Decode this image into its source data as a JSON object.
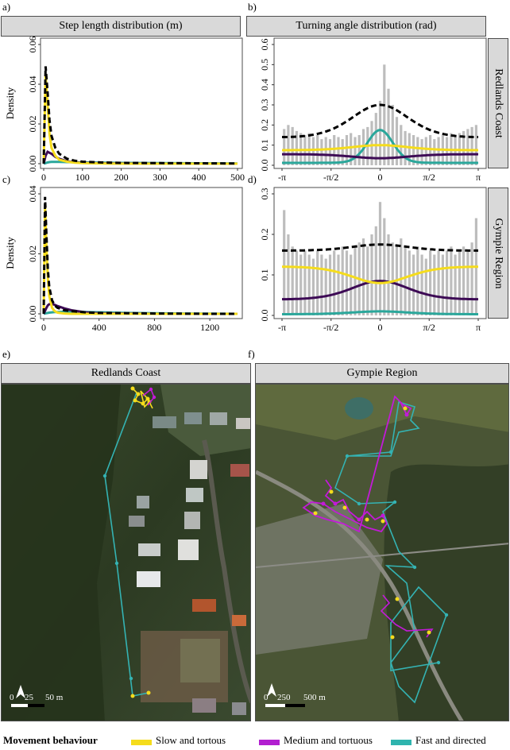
{
  "panels": {
    "a": {
      "letter": "a)",
      "title": "Step length distribution (m)"
    },
    "b": {
      "letter": "b)",
      "title": "Turning angle distribution (rad)"
    },
    "c": {
      "letter": "c)"
    },
    "d": {
      "letter": "d)"
    },
    "e": {
      "letter": "e)",
      "title": "Redlands Coast",
      "scalebar": [
        "0",
        "25",
        "50 m"
      ]
    },
    "f": {
      "letter": "f)",
      "title": "Gympie Region",
      "scalebar": [
        "0",
        "250",
        "500 m"
      ]
    }
  },
  "row_strips": [
    "Redlands Coast",
    "Gympie Region"
  ],
  "colors": {
    "slow": "#f5dc1c",
    "medium": "#3d0a55",
    "fast": "#2aa79b",
    "combined": "#000000",
    "hist": "#bdbdbd",
    "track_medium": "#c31ad8",
    "track_fast": "#34b3b3"
  },
  "legend": {
    "title": "Movement behaviour",
    "items": [
      {
        "label": "Slow and tortous",
        "color": "#f5dc1c"
      },
      {
        "label": "Medium and tortuous",
        "color": "#b21fd0"
      },
      {
        "label": "Fast and directed",
        "color": "#2fb4ae"
      }
    ]
  },
  "chart_data": [
    {
      "type": "line",
      "panel": "a",
      "title": "Step length distribution (m)",
      "ylabel": "Density",
      "row": "Redlands Coast",
      "xlim": [
        0,
        500
      ],
      "ylim": [
        0,
        0.06
      ],
      "xticks": [
        "0",
        "100",
        "200",
        "300",
        "400",
        "500"
      ],
      "yticks": [
        "0.00",
        "0.02",
        "0.04",
        "0.06"
      ],
      "x": [
        0,
        5,
        10,
        15,
        20,
        30,
        40,
        60,
        80,
        100,
        150,
        200,
        300,
        400,
        500
      ],
      "series": [
        {
          "key": "slow",
          "values": [
            0,
            0.045,
            0.03,
            0.015,
            0.008,
            0.004,
            0.002,
            0.001,
            0.0005,
            0.0003,
            0.0001,
            0,
            0,
            0,
            0
          ]
        },
        {
          "key": "medium",
          "values": [
            0,
            0.004,
            0.006,
            0.0055,
            0.005,
            0.0035,
            0.0025,
            0.0012,
            0.0007,
            0.0004,
            0.0002,
            0.0001,
            0,
            0,
            0
          ]
        },
        {
          "key": "fast",
          "values": [
            0,
            0.0003,
            0.0006,
            0.0008,
            0.0009,
            0.0009,
            0.0009,
            0.0008,
            0.0007,
            0.0006,
            0.0005,
            0.0004,
            0.0003,
            0.0002,
            0.0001
          ]
        },
        {
          "key": "combined",
          "values": [
            0,
            0.049,
            0.036,
            0.022,
            0.014,
            0.008,
            0.005,
            0.0025,
            0.0015,
            0.001,
            0.0006,
            0.0004,
            0.0003,
            0.0002,
            0.0001
          ]
        }
      ]
    },
    {
      "type": "bar",
      "panel": "b",
      "title": "Turning angle distribution (rad)",
      "row": "Redlands Coast",
      "xlim": [
        -3.1416,
        3.1416
      ],
      "ylim": [
        0,
        0.6
      ],
      "xticks": [
        "-π",
        "-π/2",
        "0",
        "π/2",
        "π"
      ],
      "yticks": [
        "0.0",
        "0.1",
        "0.2",
        "0.3",
        "0.4",
        "0.5",
        "0.6"
      ],
      "histogram": [
        0.18,
        0.2,
        0.19,
        0.17,
        0.16,
        0.15,
        0.16,
        0.14,
        0.15,
        0.13,
        0.14,
        0.13,
        0.15,
        0.14,
        0.13,
        0.15,
        0.16,
        0.14,
        0.15,
        0.18,
        0.19,
        0.22,
        0.26,
        0.32,
        0.5,
        0.38,
        0.3,
        0.24,
        0.2,
        0.17,
        0.16,
        0.15,
        0.14,
        0.13,
        0.14,
        0.15,
        0.13,
        0.14,
        0.15,
        0.14,
        0.16,
        0.15,
        0.16,
        0.17,
        0.18,
        0.19,
        0.2
      ],
      "curves": [
        {
          "key": "slow",
          "center": 0.1,
          "edge": 0.075
        },
        {
          "key": "medium",
          "center": 0.035,
          "edge": 0.055
        },
        {
          "key": "fast",
          "center": 0.175,
          "edge": 0.012,
          "peak": "sharp"
        },
        {
          "key": "combined",
          "center": 0.3,
          "edge": 0.14
        }
      ]
    },
    {
      "type": "line",
      "panel": "c",
      "ylabel": "Density",
      "row": "Gympie Region",
      "xlim": [
        0,
        1400
      ],
      "ylim": [
        0,
        0.04
      ],
      "xticks": [
        "0",
        "400",
        "800",
        "1200"
      ],
      "yticks": [
        "0.00",
        "0.02",
        "0.04"
      ],
      "x": [
        0,
        10,
        20,
        30,
        40,
        60,
        80,
        100,
        150,
        200,
        300,
        400,
        600,
        800,
        1000,
        1200,
        1400
      ],
      "series": [
        {
          "key": "slow",
          "values": [
            0,
            0.036,
            0.022,
            0.012,
            0.006,
            0.002,
            0.0009,
            0.0004,
            0.0001,
            0,
            0,
            0,
            0,
            0,
            0,
            0,
            0
          ]
        },
        {
          "key": "medium",
          "values": [
            0,
            0.001,
            0.002,
            0.0028,
            0.0032,
            0.0033,
            0.003,
            0.0026,
            0.0018,
            0.0012,
            0.0005,
            0.0002,
            0.0001,
            0,
            0,
            0,
            0
          ]
        },
        {
          "key": "fast",
          "values": [
            0,
            0.0001,
            0.0002,
            0.0003,
            0.0004,
            0.0005,
            0.0006,
            0.0006,
            0.0007,
            0.0007,
            0.0006,
            0.0005,
            0.0003,
            0.0002,
            0.0001,
            5e-05,
            0
          ]
        },
        {
          "key": "combined",
          "values": [
            0,
            0.039,
            0.026,
            0.015,
            0.009,
            0.0045,
            0.0028,
            0.002,
            0.0012,
            0.0009,
            0.0005,
            0.0003,
            0.0002,
            0.0001,
            5e-05,
            0,
            0
          ]
        }
      ]
    },
    {
      "type": "bar",
      "panel": "d",
      "row": "Gympie Region",
      "xlim": [
        -3.1416,
        3.1416
      ],
      "ylim": [
        0,
        0.3
      ],
      "xticks": [
        "-π",
        "-π/2",
        "0",
        "π/2",
        "π"
      ],
      "yticks": [
        "0.0",
        "0.1",
        "0.2",
        "0.3"
      ],
      "histogram": [
        0.26,
        0.2,
        0.17,
        0.16,
        0.15,
        0.16,
        0.15,
        0.14,
        0.16,
        0.15,
        0.14,
        0.15,
        0.16,
        0.15,
        0.17,
        0.16,
        0.15,
        0.17,
        0.18,
        0.19,
        0.17,
        0.2,
        0.22,
        0.28,
        0.24,
        0.2,
        0.18,
        0.17,
        0.19,
        0.17,
        0.16,
        0.15,
        0.17,
        0.15,
        0.14,
        0.16,
        0.15,
        0.16,
        0.15,
        0.16,
        0.17,
        0.15,
        0.16,
        0.17,
        0.16,
        0.18,
        0.24
      ],
      "curves": [
        {
          "key": "slow",
          "center": 0.08,
          "edge": 0.12
        },
        {
          "key": "medium",
          "center": 0.085,
          "edge": 0.04
        },
        {
          "key": "fast",
          "center": 0.01,
          "edge": 0.003
        },
        {
          "key": "combined",
          "center": 0.175,
          "edge": 0.16
        }
      ]
    }
  ]
}
